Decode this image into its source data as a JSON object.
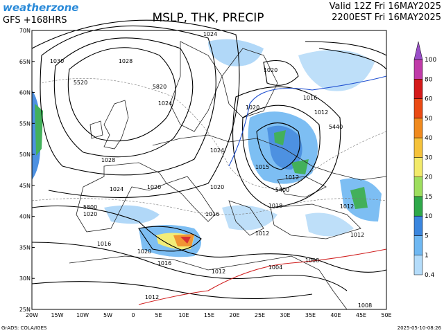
{
  "header": {
    "brand": "weatherzone",
    "model": "GFS +168HRS",
    "title": "MSLP, THK, PRECIP",
    "valid": "Valid 12Z Fri 16MAY2025",
    "local": "2200EST Fri 16MAY2025"
  },
  "map": {
    "lat_labels": [
      "70N",
      "65N",
      "60N",
      "55N",
      "50N",
      "45N",
      "40N",
      "35N",
      "30N",
      "25N"
    ],
    "lon_labels": [
      "20W",
      "15W",
      "10W",
      "5W",
      "0",
      "5E",
      "10E",
      "15E",
      "20E",
      "25E",
      "30E",
      "35E",
      "40E",
      "45E",
      "50E"
    ],
    "isobar_labels": [
      "1024",
      "1030",
      "1028",
      "5520",
      "5820",
      "1024",
      "1020",
      "1016",
      "1012",
      "1020",
      "1024",
      "1028",
      "1015",
      "1012",
      "5400",
      "1024",
      "1020",
      "1020",
      "5800",
      "1020",
      "1018",
      "1012",
      "1016",
      "1012",
      "1012",
      "1016",
      "1020",
      "1016",
      "1008",
      "1004",
      "1012",
      "1012",
      "1008",
      "5440"
    ]
  },
  "legend": {
    "levels": [
      0.4,
      1,
      5,
      10,
      15,
      20,
      30,
      40,
      50,
      60,
      80,
      100
    ],
    "colors": [
      "#b4dcfa",
      "#6fb8f2",
      "#3a86de",
      "#2fa84a",
      "#9ede5e",
      "#f2ea6a",
      "#f5c23a",
      "#f08a1e",
      "#ea4a14",
      "#d41a1a",
      "#c03aa8",
      "#9a4ec8"
    ]
  },
  "footer": {
    "source": "GrADS: COLA/IGES",
    "timestamp": "2025-05-10-08:26"
  }
}
